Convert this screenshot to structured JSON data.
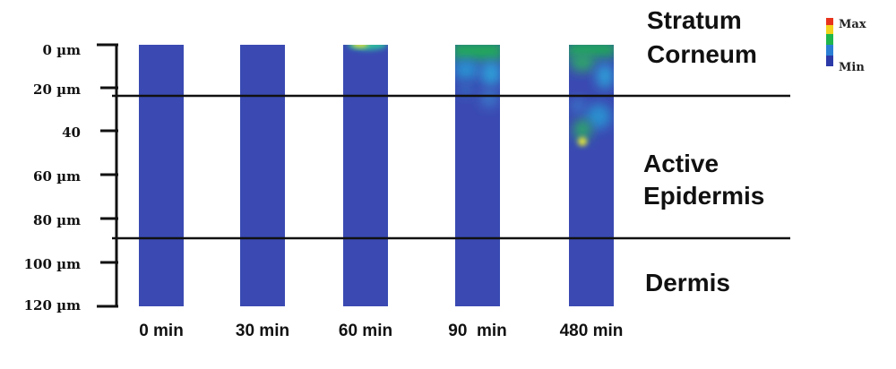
{
  "depth_axis": {
    "ticks": [
      "0 µm",
      "20 µm",
      "40",
      "60 µm",
      "80 µm",
      "100 µm",
      "120 µm"
    ]
  },
  "timepoints": [
    "0 min",
    "30 min",
    "60 min",
    "90  min",
    "480 min"
  ],
  "layers": {
    "stratum_corneum": [
      "Stratum",
      "Corneum"
    ],
    "active_epidermis": [
      "Active",
      "Epidermis"
    ],
    "dermis": [
      "Dermis"
    ]
  },
  "legend": {
    "max_label": "Max",
    "min_label": "Min",
    "colors": [
      "#e8331c",
      "#f2d21a",
      "#1fb64c",
      "#2a7fd4",
      "#2c3aa8"
    ]
  },
  "colors": {
    "tissue_base": "#3a4ab2",
    "line": "#111111"
  }
}
